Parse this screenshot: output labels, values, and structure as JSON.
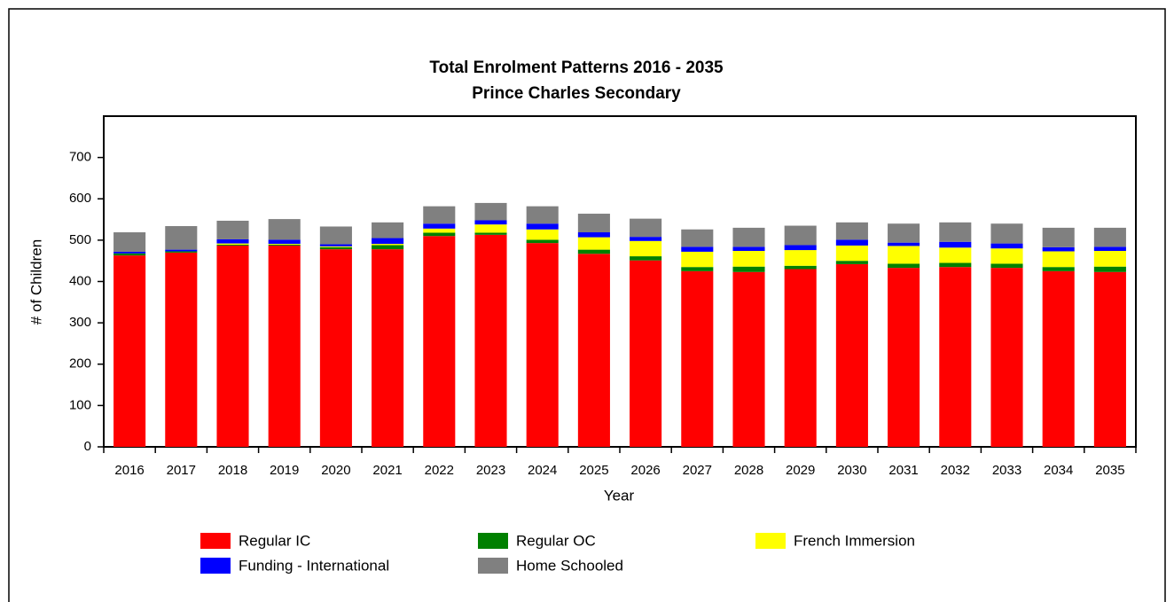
{
  "chart_data": {
    "type": "stacked_bar",
    "title": "Total Enrolment Patterns 2016 - 2035",
    "subtitle": "Prince Charles Secondary",
    "x_label": "Year",
    "y_label": "# of Children",
    "categories": [
      "2016",
      "2017",
      "2018",
      "2019",
      "2020",
      "2021",
      "2022",
      "2023",
      "2024",
      "2025",
      "2026",
      "2027",
      "2028",
      "2029",
      "2030",
      "2031",
      "2032",
      "2033",
      "2034",
      "2035"
    ],
    "series": [
      {
        "name": "Regular IC",
        "color": "#ff0000",
        "values": [
          463,
          470,
          487,
          487,
          478,
          478,
          510,
          513,
          493,
          467,
          451,
          425,
          423,
          430,
          442,
          433,
          435,
          433,
          425,
          423
        ]
      },
      {
        "name": "Regular OC",
        "color": "#008000",
        "values": [
          5,
          3,
          2,
          2,
          5,
          10,
          8,
          5,
          8,
          10,
          10,
          10,
          13,
          8,
          8,
          10,
          10,
          10,
          10,
          13
        ]
      },
      {
        "name": "French Immersion",
        "color": "#ffff00",
        "values": [
          0,
          0,
          3,
          2,
          2,
          3,
          10,
          20,
          25,
          30,
          37,
          37,
          38,
          38,
          37,
          43,
          37,
          37,
          38,
          38
        ]
      },
      {
        "name": "Funding - International",
        "color": "#0000ff",
        "values": [
          4,
          4,
          10,
          10,
          5,
          14,
          12,
          10,
          14,
          12,
          10,
          12,
          10,
          12,
          14,
          8,
          14,
          12,
          10,
          10
        ]
      },
      {
        "name": "Home Schooled",
        "color": "#808080",
        "values": [
          47,
          57,
          45,
          50,
          43,
          38,
          42,
          42,
          42,
          45,
          44,
          42,
          46,
          47,
          42,
          46,
          47,
          48,
          47,
          46
        ]
      }
    ],
    "ylim": [
      0,
      800
    ],
    "yticks": [
      0,
      100,
      200,
      300,
      400,
      500,
      600,
      700
    ],
    "grid": false,
    "legend": "bottom"
  }
}
